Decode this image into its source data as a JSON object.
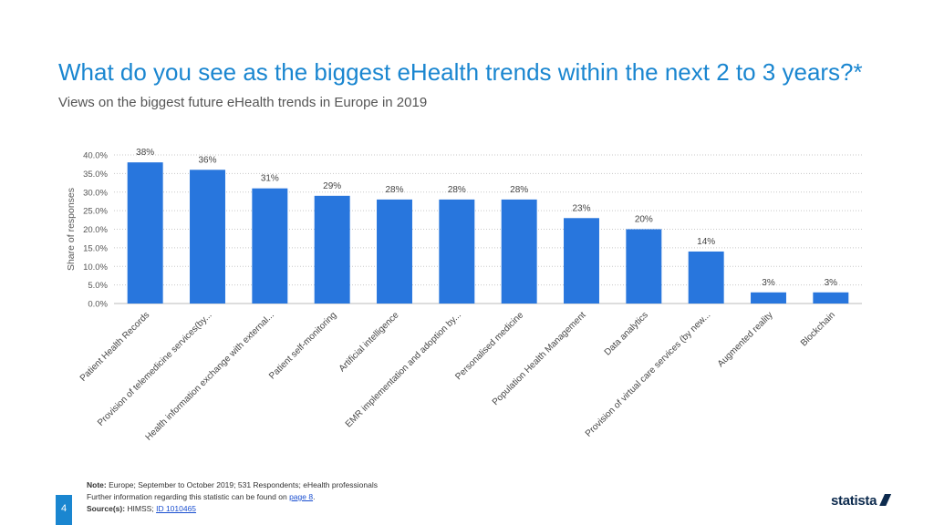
{
  "header": {
    "title": "What do you see as the biggest eHealth trends within the next 2 to 3 years?*",
    "subtitle": "Views on the biggest future eHealth trends in Europe in 2019"
  },
  "chart_data": {
    "type": "bar",
    "categories": [
      "Patient Health Records",
      "Provision of telemedicine services(by...",
      "Health information exchange with external...",
      "Patient self-monitoring",
      "Artificial intelligence",
      "EMR implementation and adoption by...",
      "Personalised medicine",
      "Population Health Management",
      "Data analytics",
      "Provision of virtual care services (by new...",
      "Augmented reality",
      "Blockchain"
    ],
    "values": [
      38,
      36,
      31,
      29,
      28,
      28,
      28,
      23,
      20,
      14,
      3,
      3
    ],
    "value_labels": [
      "38%",
      "36%",
      "31%",
      "29%",
      "28%",
      "28%",
      "28%",
      "23%",
      "20%",
      "14%",
      "3%",
      "3%"
    ],
    "yticks": [
      0,
      5,
      10,
      15,
      20,
      25,
      30,
      35,
      40
    ],
    "ytick_labels": [
      "0.0%",
      "5.0%",
      "10.0%",
      "15.0%",
      "20.0%",
      "25.0%",
      "30.0%",
      "35.0%",
      "40.0%"
    ],
    "ylabel": "Share of responses",
    "xlabel": "",
    "ylim": [
      0,
      40
    ],
    "grid": true,
    "bar_color": "#2876dd"
  },
  "footer": {
    "note_label": "Note:",
    "note_text": "Europe; September to October 2019; 531 Respondents; eHealth professionals",
    "info_text": "Further information regarding this statistic can be found on",
    "info_link": "page 8",
    "info_end": ".",
    "source_label": "Source(s):",
    "source_text": "HIMSS;",
    "source_link": "ID 1010465"
  },
  "page_number": "4",
  "brand": "statista"
}
